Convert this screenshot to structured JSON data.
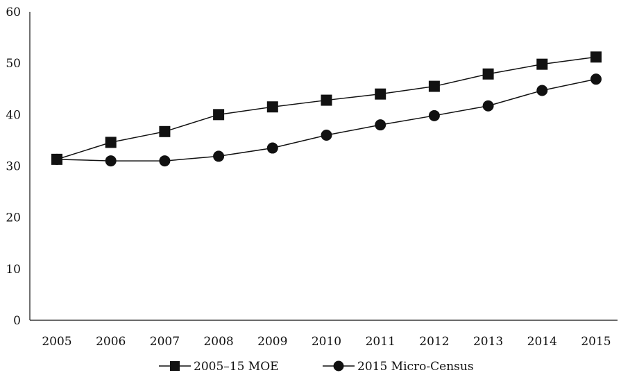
{
  "chart_data": {
    "type": "line",
    "x": [
      "2005",
      "2006",
      "2007",
      "2008",
      "2009",
      "2010",
      "2011",
      "2012",
      "2013",
      "2014",
      "2015"
    ],
    "ylim": [
      0,
      60
    ],
    "yticks": [
      0,
      10,
      20,
      30,
      40,
      50,
      60
    ],
    "grid": false,
    "legend_position": "bottom",
    "series": [
      {
        "name": "2005–15 MOE",
        "marker": "square",
        "color": "#111111",
        "values": [
          31.3,
          34.6,
          36.7,
          40.0,
          41.5,
          42.8,
          44.0,
          45.5,
          47.9,
          49.8,
          51.2
        ]
      },
      {
        "name": "2015 Micro-Census",
        "marker": "circle",
        "color": "#111111",
        "values": [
          31.3,
          31.0,
          31.0,
          31.9,
          33.5,
          36.0,
          38.0,
          39.8,
          41.7,
          44.7,
          46.9
        ]
      }
    ]
  }
}
